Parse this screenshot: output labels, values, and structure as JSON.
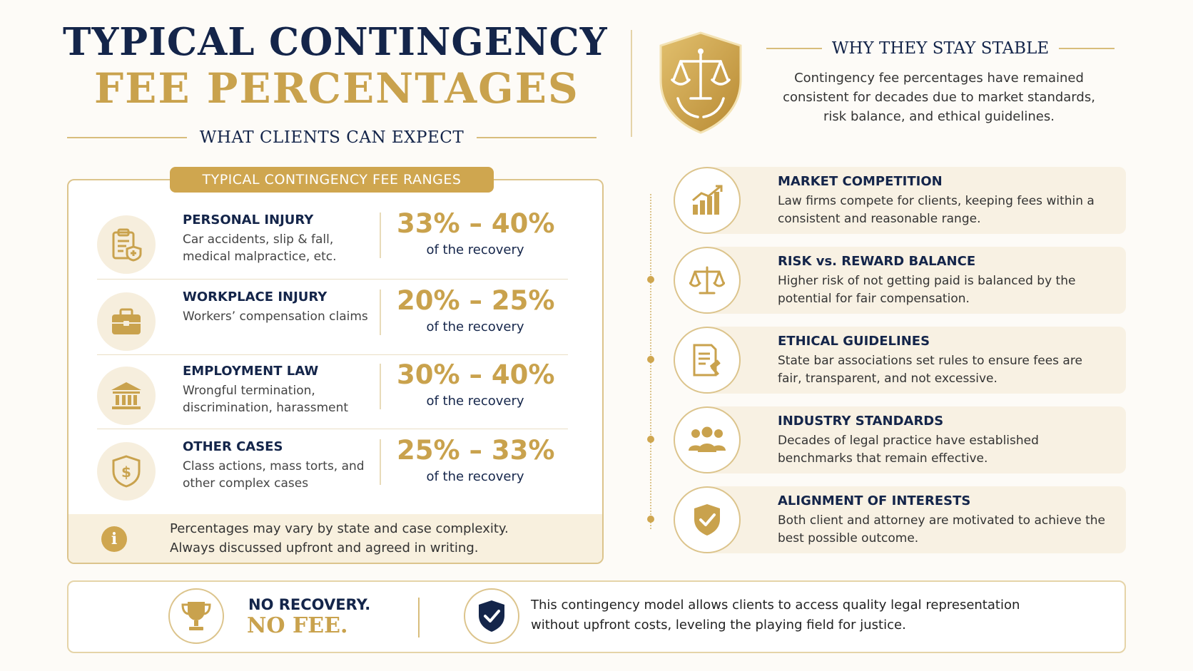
{
  "header": {
    "title_line1": "TYPICAL CONTINGENCY",
    "title_line2": "FEE PERCENTAGES",
    "subtitle": "WHAT CLIENTS CAN EXPECT"
  },
  "why": {
    "title": "WHY THEY STAY STABLE",
    "text": "Contingency fee percentages have remained consistent for decades due to market standards, risk balance, and ethical guidelines."
  },
  "fees": {
    "tag": "TYPICAL CONTINGENCY FEE RANGES",
    "rows": [
      {
        "icon": "clipboard-shield-icon",
        "name": "PERSONAL INJURY",
        "desc": "Car accidents, slip & fall, medical malpractice, etc.",
        "range": "33% – 40%",
        "suffix": "of the recovery"
      },
      {
        "icon": "briefcase-icon",
        "name": "WORKPLACE INJURY",
        "desc": "Workers’ compensation claims",
        "range": "20% – 25%",
        "suffix": "of the recovery"
      },
      {
        "icon": "courthouse-icon",
        "name": "EMPLOYMENT LAW",
        "desc": "Wrongful termination, discrimination, harassment",
        "range": "30% – 40%",
        "suffix": "of the recovery"
      },
      {
        "icon": "dollar-shield-icon",
        "name": "OTHER CASES",
        "desc": "Class actions, mass torts, and other complex cases",
        "range": "25% – 33%",
        "suffix": "of the recovery"
      }
    ],
    "note_line1": "Percentages may vary by state and case complexity.",
    "note_line2": "Always discussed upfront and agreed in writing."
  },
  "reasons": [
    {
      "icon": "bar-chart-icon",
      "title": "MARKET COMPETITION",
      "text": "Law firms compete for clients, keeping fees within a consistent and reasonable range."
    },
    {
      "icon": "scales-icon",
      "title": "RISK vs. REWARD BALANCE",
      "text": "Higher risk of not getting paid is balanced by the potential for fair compensation."
    },
    {
      "icon": "document-gavel-icon",
      "title": "ETHICAL GUIDELINES",
      "text": "State bar associations set rules to ensure fees are fair, transparent, and not excessive."
    },
    {
      "icon": "people-icon",
      "title": "INDUSTRY STANDARDS",
      "text": "Decades of legal practice have established benchmarks that remain effective."
    },
    {
      "icon": "shield-check-icon",
      "title": "ALIGNMENT OF INTERESTS",
      "text": "Both client and attorney are motivated to achieve the best possible outcome."
    }
  ],
  "bottom": {
    "no_recovery": "NO RECOVERY.",
    "no_fee": "NO FEE.",
    "text": "This contingency model allows clients to access quality legal representation without upfront costs, leveling the playing field for justice."
  },
  "colors": {
    "navy": "#14254a",
    "gold": "#c9a24d",
    "cream": "#f8f1e3"
  }
}
